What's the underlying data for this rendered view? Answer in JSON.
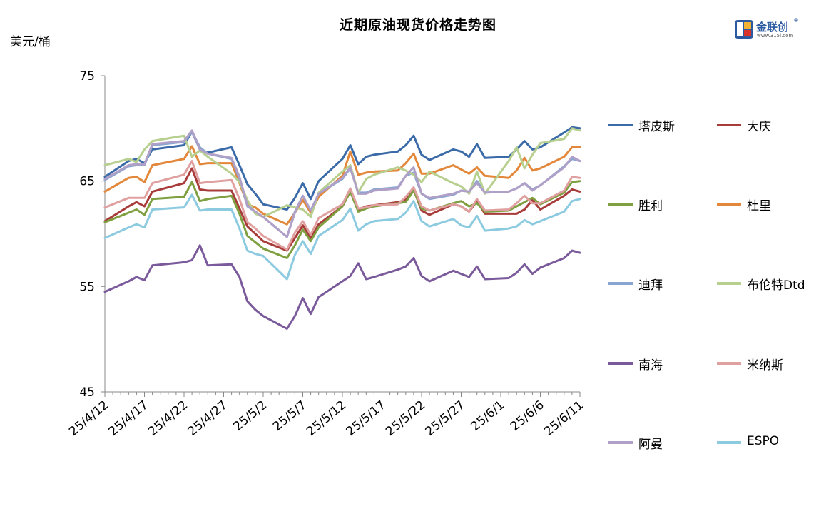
{
  "title": "近期原油现货价格走势图",
  "unit_label": "美元/桶",
  "logo": {
    "brand": "金联创",
    "site": "www.315i.com",
    "reg": "®"
  },
  "chart_data": {
    "type": "line",
    "title": "近期原油现货价格走势图",
    "ylabel": "美元/桶",
    "ylim": [
      45,
      75
    ],
    "yticks": [
      75,
      65,
      55,
      45
    ],
    "xlim": [
      "2025-04-12",
      "2025-06-11"
    ],
    "xticks": [
      "25/4/12",
      "25/4/17",
      "25/4/22",
      "25/4/27",
      "25/5/2",
      "25/5/7",
      "25/5/12",
      "25/5/17",
      "25/5/22",
      "25/5/27",
      "25/6/1",
      "25/6/6",
      "25/6/11"
    ],
    "x": [
      "2025-04-12",
      "2025-04-15",
      "2025-04-16",
      "2025-04-17",
      "2025-04-18",
      "2025-04-22",
      "2025-04-23",
      "2025-04-24",
      "2025-04-25",
      "2025-04-28",
      "2025-04-29",
      "2025-04-30",
      "2025-05-01",
      "2025-05-02",
      "2025-05-05",
      "2025-05-06",
      "2025-05-07",
      "2025-05-08",
      "2025-05-09",
      "2025-05-12",
      "2025-05-13",
      "2025-05-14",
      "2025-05-15",
      "2025-05-16",
      "2025-05-19",
      "2025-05-20",
      "2025-05-21",
      "2025-05-22",
      "2025-05-23",
      "2025-05-26",
      "2025-05-27",
      "2025-05-28",
      "2025-05-29",
      "2025-05-30",
      "2025-06-02",
      "2025-06-03",
      "2025-06-04",
      "2025-06-05",
      "2025-06-06",
      "2025-06-09",
      "2025-06-10",
      "2025-06-11"
    ],
    "series": [
      {
        "name": "塔皮斯",
        "color": "#3a6aa8",
        "values": [
          65.4,
          66.9,
          67.1,
          66.7,
          68.0,
          68.4,
          69.7,
          68.0,
          67.7,
          68.2,
          66.5,
          64.7,
          63.8,
          62.8,
          62.3,
          63.4,
          64.8,
          63.3,
          65.0,
          67.1,
          68.4,
          66.6,
          67.3,
          67.5,
          67.8,
          68.4,
          69.3,
          67.5,
          67.0,
          68.0,
          67.8,
          67.3,
          68.5,
          67.2,
          67.3,
          68.0,
          68.8,
          68.0,
          68.2,
          69.6,
          70.1,
          70.0
        ]
      },
      {
        "name": "大庆",
        "color": "#a83c3a",
        "values": [
          61.2,
          62.6,
          63.0,
          62.6,
          64.0,
          64.8,
          66.2,
          64.2,
          64.1,
          64.1,
          62.4,
          60.7,
          60.0,
          59.3,
          58.4,
          59.6,
          60.8,
          59.6,
          60.9,
          62.6,
          64.0,
          62.3,
          62.6,
          62.7,
          63.0,
          63.2,
          64.2,
          62.2,
          61.8,
          62.8,
          62.6,
          62.1,
          63.1,
          61.9,
          61.9,
          61.9,
          62.3,
          63.2,
          62.3,
          63.6,
          64.2,
          64.0
        ]
      },
      {
        "name": "胜利",
        "color": "#7fa040",
        "values": [
          61.1,
          62.0,
          62.3,
          61.8,
          63.3,
          63.5,
          64.9,
          63.1,
          63.3,
          63.6,
          61.9,
          59.8,
          59.2,
          58.6,
          57.7,
          58.9,
          60.4,
          59.3,
          60.6,
          62.6,
          64.0,
          62.1,
          62.4,
          62.6,
          62.9,
          63.0,
          64.1,
          62.4,
          62.2,
          62.9,
          63.1,
          62.6,
          62.9,
          62.1,
          62.2,
          62.6,
          63.0,
          63.4,
          62.8,
          63.9,
          64.9,
          65.0
        ]
      },
      {
        "name": "杜里",
        "color": "#e3873a",
        "values": [
          64.0,
          65.3,
          65.4,
          64.9,
          66.5,
          67.1,
          68.3,
          66.6,
          66.7,
          66.7,
          64.8,
          62.8,
          62.5,
          61.9,
          60.9,
          62.0,
          63.2,
          62.0,
          63.5,
          65.5,
          67.8,
          65.6,
          65.8,
          65.9,
          66.0,
          66.7,
          67.6,
          65.7,
          65.7,
          66.5,
          66.1,
          65.7,
          66.3,
          65.5,
          65.3,
          66.0,
          67.2,
          66.0,
          66.2,
          67.3,
          68.2,
          68.2
        ]
      },
      {
        "name": "迪拜",
        "color": "#8aa5d0",
        "values": [
          65.1,
          66.4,
          66.5,
          66.5,
          68.4,
          68.7,
          69.7,
          68.2,
          67.6,
          67.1,
          65.2,
          62.6,
          62.1,
          61.6,
          59.7,
          62.1,
          63.6,
          62.2,
          63.8,
          65.2,
          66.2,
          63.9,
          63.9,
          64.2,
          64.4,
          65.5,
          65.8,
          63.8,
          63.3,
          63.7,
          64.1,
          64.0,
          65.0,
          63.9,
          64.0,
          64.3,
          64.8,
          64.2,
          64.6,
          66.4,
          67.1,
          66.9
        ]
      },
      {
        "name": "布伦特Dtd",
        "color": "#b7cf8f",
        "values": [
          66.5,
          67.1,
          66.8,
          68.0,
          68.8,
          69.3,
          67.3,
          67.9,
          67.3,
          65.7,
          64.9,
          63.2,
          61.9,
          61.6,
          62.7,
          62.5,
          62.3,
          61.6,
          63.9,
          65.9,
          66.5,
          63.9,
          65.2,
          65.6,
          66.3,
          66.0,
          65.6,
          64.9,
          65.9,
          64.8,
          64.5,
          63.8,
          65.9,
          63.8,
          66.9,
          68.2,
          66.2,
          67.5,
          68.6,
          69.0,
          70.0,
          69.8
        ]
      },
      {
        "name": "南海",
        "color": "#7a5a9a",
        "values": [
          54.5,
          55.5,
          55.9,
          55.6,
          57.0,
          57.3,
          57.5,
          58.9,
          57.0,
          57.1,
          55.9,
          53.6,
          52.8,
          52.2,
          51.0,
          52.2,
          53.9,
          52.4,
          54.0,
          55.5,
          56.0,
          57.2,
          55.7,
          55.9,
          56.6,
          56.9,
          57.7,
          56.0,
          55.5,
          56.5,
          56.2,
          55.9,
          56.9,
          55.7,
          55.8,
          56.3,
          57.1,
          56.2,
          56.8,
          57.7,
          58.4,
          58.2
        ]
      },
      {
        "name": "米纳斯",
        "color": "#e0a0a0",
        "values": [
          62.5,
          63.4,
          63.4,
          63.4,
          64.8,
          65.6,
          66.9,
          64.8,
          64.9,
          65.1,
          63.3,
          61.1,
          60.5,
          59.8,
          58.5,
          60.1,
          61.2,
          59.9,
          61.5,
          62.8,
          64.3,
          62.4,
          62.5,
          62.7,
          62.8,
          63.5,
          64.4,
          62.6,
          62.2,
          62.8,
          62.6,
          62.1,
          63.3,
          62.2,
          62.3,
          62.9,
          63.6,
          62.9,
          62.9,
          64.1,
          65.4,
          65.3
        ]
      },
      {
        "name": "阿曼",
        "color": "#b0a0c8",
        "values": [
          65.2,
          66.5,
          66.6,
          66.6,
          68.5,
          68.8,
          69.8,
          68.0,
          67.6,
          67.2,
          65.4,
          62.7,
          62.1,
          61.6,
          59.7,
          62.0,
          63.6,
          62.2,
          63.8,
          65.3,
          66.3,
          63.8,
          63.8,
          64.1,
          64.3,
          65.5,
          66.3,
          63.8,
          63.4,
          63.8,
          64.1,
          64.0,
          64.8,
          63.9,
          64.0,
          64.3,
          64.8,
          64.1,
          64.6,
          66.3,
          67.3,
          66.9
        ]
      },
      {
        "name": "ESPO",
        "color": "#8ccae0",
        "values": [
          59.6,
          60.6,
          60.9,
          60.6,
          62.3,
          62.5,
          63.7,
          62.2,
          62.3,
          62.3,
          60.5,
          58.4,
          58.1,
          57.9,
          55.7,
          58.0,
          59.3,
          58.1,
          59.8,
          61.3,
          62.4,
          60.3,
          60.9,
          61.2,
          61.4,
          62.0,
          63.1,
          61.2,
          60.7,
          61.4,
          60.8,
          60.6,
          61.7,
          60.3,
          60.5,
          60.7,
          61.3,
          60.9,
          61.2,
          62.1,
          63.1,
          63.3
        ]
      }
    ]
  }
}
